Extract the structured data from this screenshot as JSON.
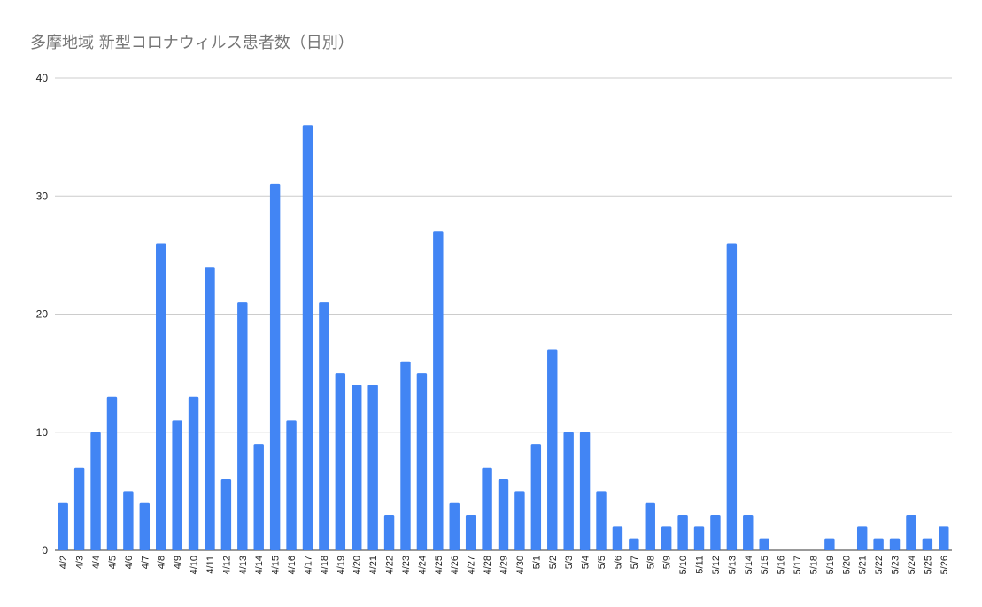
{
  "chart_data": {
    "type": "bar",
    "title": "多摩地域 新型コロナウィルス患者数（日別）",
    "xlabel": "",
    "ylabel": "",
    "ylim": [
      0,
      40
    ],
    "yticks": [
      0,
      10,
      20,
      30,
      40
    ],
    "grid": true,
    "legend": "none",
    "bar_color": "#4285f4",
    "categories": [
      "4/2",
      "4/3",
      "4/4",
      "4/5",
      "4/6",
      "4/7",
      "4/8",
      "4/9",
      "4/10",
      "4/11",
      "4/12",
      "4/13",
      "4/14",
      "4/15",
      "4/16",
      "4/17",
      "4/18",
      "4/19",
      "4/20",
      "4/21",
      "4/22",
      "4/23",
      "4/24",
      "4/25",
      "4/26",
      "4/27",
      "4/28",
      "4/29",
      "4/30",
      "5/1",
      "5/2",
      "5/3",
      "5/4",
      "5/5",
      "5/6",
      "5/7",
      "5/8",
      "5/9",
      "5/10",
      "5/11",
      "5/12",
      "5/13",
      "5/14",
      "5/15",
      "5/16",
      "5/17",
      "5/18",
      "5/19",
      "5/20",
      "5/21",
      "5/22",
      "5/23",
      "5/24",
      "5/25",
      "5/26"
    ],
    "values": [
      4,
      7,
      10,
      13,
      5,
      4,
      26,
      11,
      13,
      24,
      6,
      21,
      9,
      31,
      11,
      36,
      21,
      15,
      14,
      14,
      3,
      16,
      15,
      27,
      4,
      3,
      7,
      6,
      5,
      9,
      17,
      10,
      10,
      5,
      2,
      1,
      4,
      2,
      3,
      2,
      3,
      26,
      3,
      1,
      0,
      0,
      0,
      1,
      0,
      2,
      1,
      1,
      3,
      1,
      2
    ]
  }
}
